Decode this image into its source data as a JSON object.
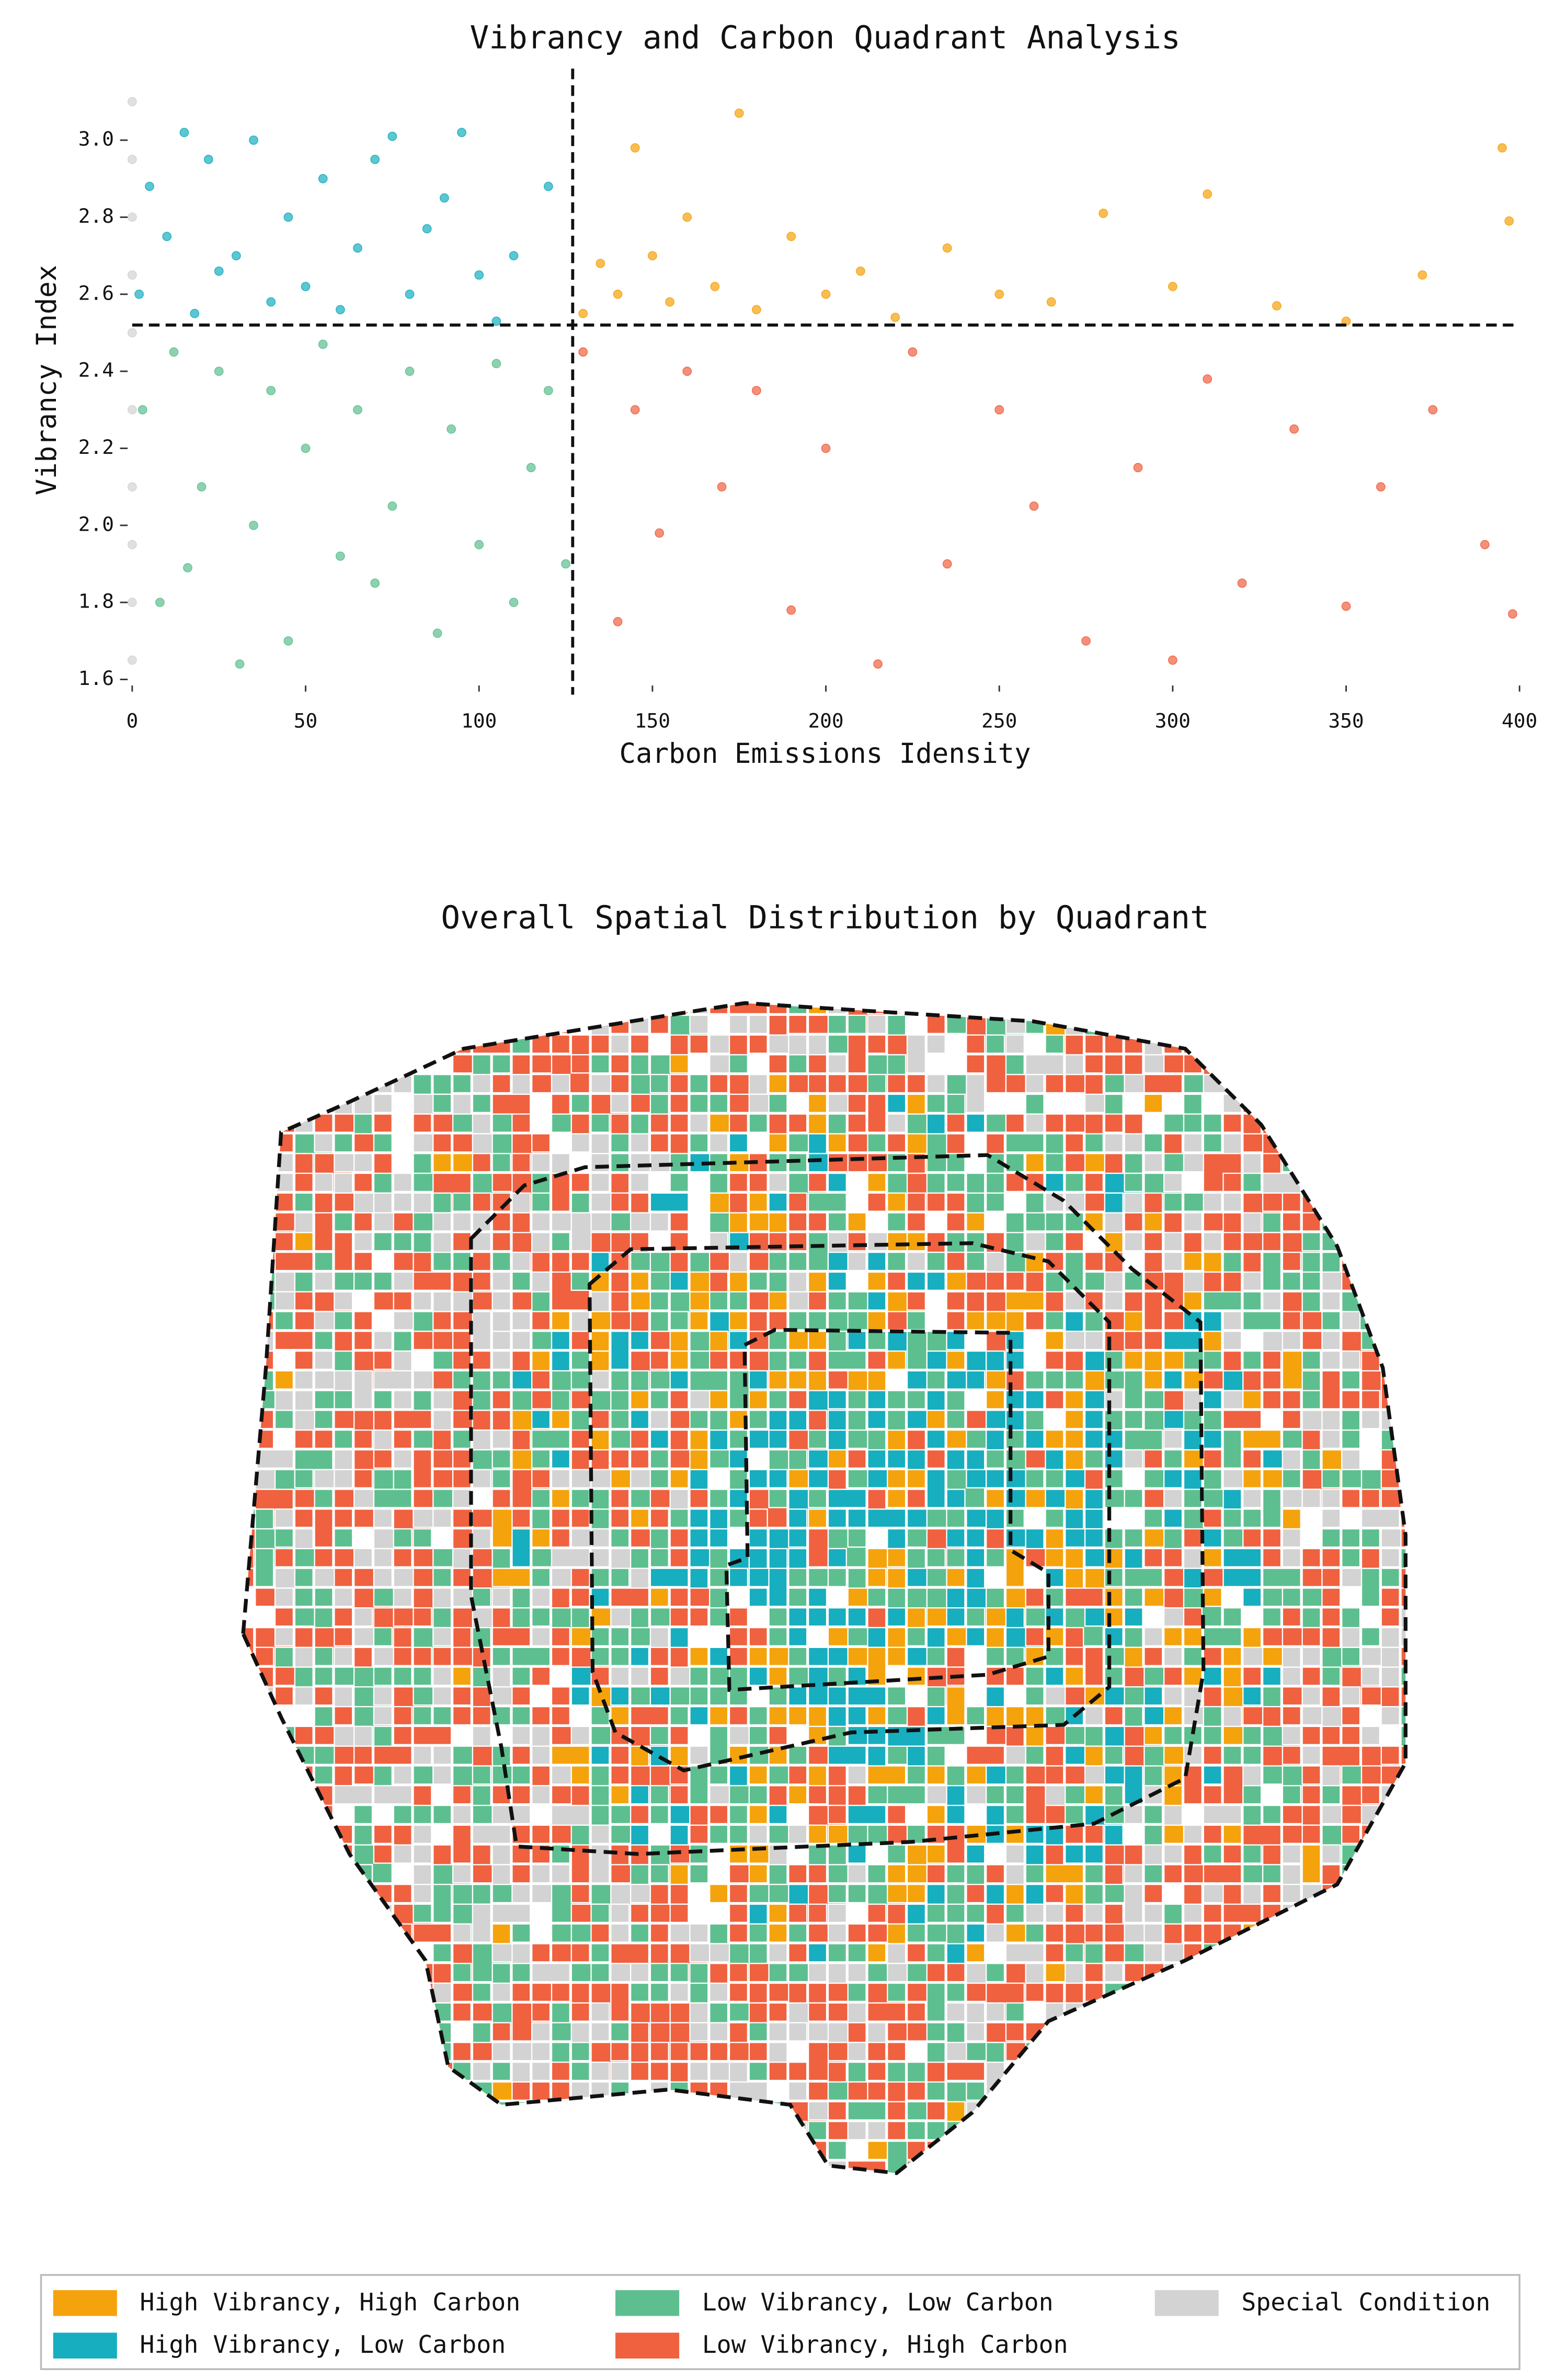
{
  "chart_data": [
    {
      "type": "scatter",
      "title": "Vibrancy and Carbon Quadrant Analysis",
      "xlabel": "Carbon Emissions Idensity",
      "ylabel": "Vibrancy Index",
      "xlim": [
        0,
        400
      ],
      "ylim": [
        1.6,
        3.15
      ],
      "xticks": [
        0,
        50,
        100,
        150,
        200,
        250,
        300,
        350,
        400
      ],
      "yticks": [
        1.6,
        1.8,
        {
          "value": 2,
          "label": "2.0"
        },
        2.2,
        2.4,
        2.6,
        2.8,
        {
          "value": 3,
          "label": "3.0"
        }
      ],
      "x_threshold": 127,
      "y_threshold": 2.52,
      "series": [
        {
          "name": "High Vibrancy, High Carbon",
          "color": "#f5a30c",
          "x": [
            130,
            135,
            140,
            145,
            150,
            155,
            160,
            168,
            175,
            180,
            190,
            200,
            210,
            220,
            235,
            250,
            265,
            280,
            300,
            310,
            330,
            350,
            372,
            395,
            397
          ],
          "values": [
            2.55,
            2.68,
            2.6,
            2.98,
            2.7,
            2.58,
            2.8,
            2.62,
            3.07,
            2.56,
            2.75,
            2.6,
            2.66,
            2.54,
            2.72,
            2.6,
            2.58,
            2.81,
            2.62,
            2.86,
            2.57,
            2.53,
            2.65,
            2.98,
            2.79
          ]
        },
        {
          "name": "High Vibrancy, Low Carbon",
          "color": "#17aebf",
          "x": [
            2,
            5,
            10,
            15,
            18,
            22,
            25,
            30,
            35,
            40,
            45,
            50,
            55,
            60,
            65,
            70,
            75,
            80,
            85,
            90,
            95,
            100,
            105,
            110,
            120
          ],
          "values": [
            2.6,
            2.88,
            2.75,
            3.02,
            2.55,
            2.95,
            2.66,
            2.7,
            3.0,
            2.58,
            2.8,
            2.62,
            2.9,
            2.56,
            2.72,
            2.95,
            3.01,
            2.6,
            2.77,
            2.85,
            3.02,
            2.65,
            2.53,
            2.7,
            2.88
          ]
        },
        {
          "name": "Low Vibrancy, Low Carbon",
          "color": "#5dbf8f",
          "x": [
            3,
            8,
            12,
            16,
            20,
            25,
            31,
            35,
            40,
            45,
            50,
            55,
            60,
            65,
            70,
            75,
            80,
            88,
            92,
            100,
            105,
            110,
            115,
            120,
            125
          ],
          "values": [
            2.3,
            1.8,
            2.45,
            1.89,
            2.1,
            2.4,
            1.64,
            2.0,
            2.35,
            1.7,
            2.2,
            2.47,
            1.92,
            2.3,
            1.85,
            2.05,
            2.4,
            1.72,
            2.25,
            1.95,
            2.42,
            1.8,
            2.15,
            2.35,
            1.9
          ]
        },
        {
          "name": "Low Vibrancy, High Carbon",
          "color": "#f06140",
          "x": [
            130,
            140,
            145,
            152,
            160,
            170,
            180,
            190,
            200,
            215,
            225,
            235,
            250,
            260,
            275,
            290,
            300,
            310,
            320,
            335,
            350,
            360,
            375,
            390,
            398
          ],
          "values": [
            2.45,
            1.75,
            2.3,
            1.98,
            2.4,
            2.1,
            2.35,
            1.78,
            2.2,
            1.64,
            2.45,
            1.9,
            2.3,
            2.05,
            1.7,
            2.15,
            1.65,
            2.38,
            1.85,
            2.25,
            1.79,
            2.1,
            2.3,
            1.95,
            1.77
          ]
        },
        {
          "name": "Special Condition",
          "color": "#d3d3d3",
          "x": [
            0,
            0,
            0,
            0,
            0,
            0,
            0,
            0,
            0,
            0
          ],
          "values": [
            1.65,
            1.8,
            1.95,
            2.1,
            2.3,
            2.5,
            2.65,
            2.8,
            2.95,
            3.1
          ]
        }
      ]
    },
    {
      "type": "map",
      "title": "Overall Spatial Distribution by Quadrant"
    }
  ]
}
